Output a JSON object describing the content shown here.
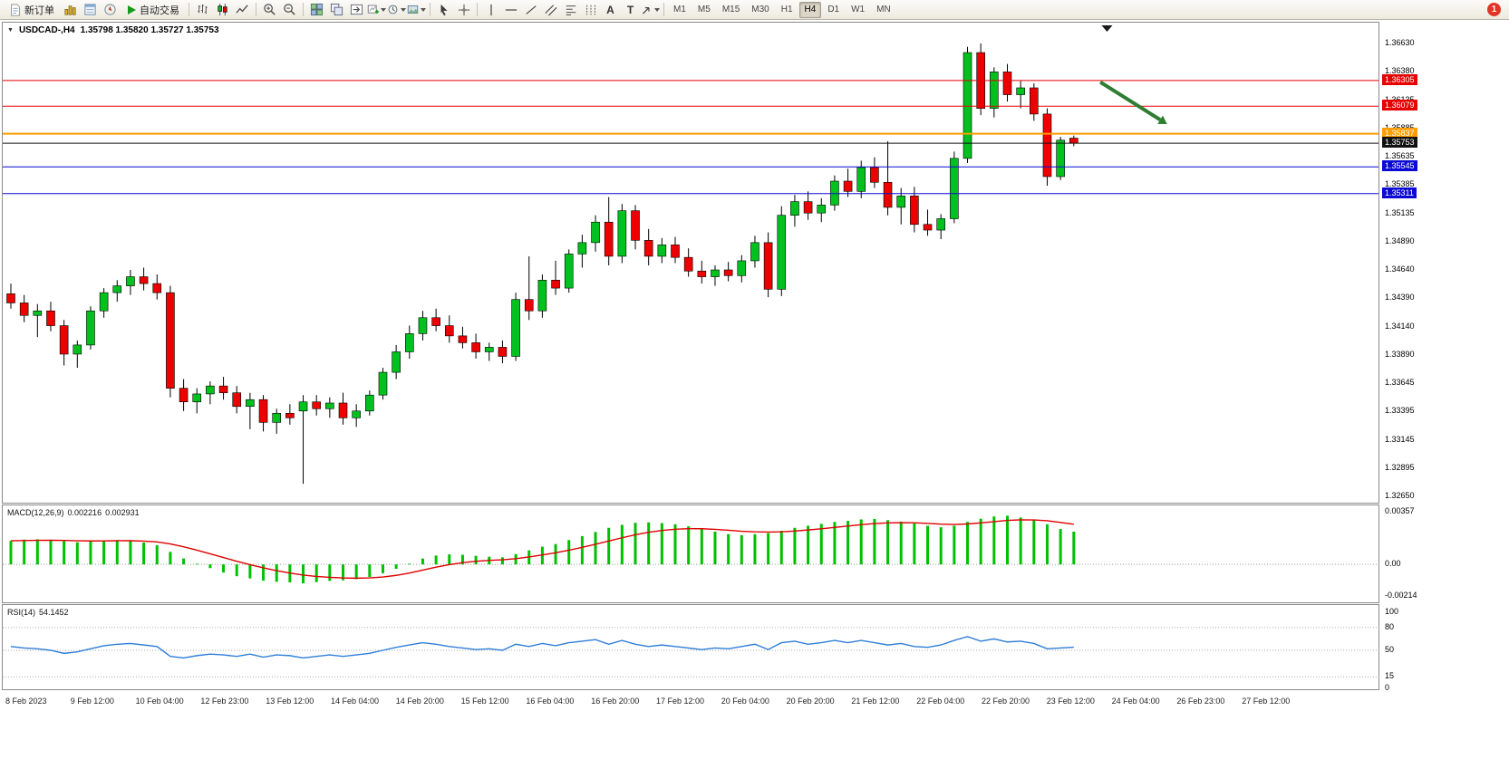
{
  "colors": {
    "candle_up": "#00C11E",
    "candle_down": "#ED0000",
    "wick": "#000000",
    "macd_histogram": "#00C000",
    "macd_signal": "#E00000",
    "rsi_line": "#2F7ED8",
    "arrow": "#2E7D32",
    "resistance_line": "#E60000",
    "support_line": "#0A0AD4",
    "pivot_line": "#FF9C00",
    "bid_line": "#111111"
  },
  "toolbar": {
    "new_order_label": "新订单",
    "auto_trading_label": "自动交易",
    "timeframes": [
      "M1",
      "M5",
      "M15",
      "M30",
      "H1",
      "H4",
      "D1",
      "W1",
      "MN"
    ],
    "active_timeframe": "H4",
    "notification_badge": "1"
  },
  "chart": {
    "title": "USDCAD-,H4",
    "ohlc": "1.35798 1.35820 1.35727 1.35753"
  },
  "price_axis": [
    "1.36630",
    "1.36380",
    "1.36135",
    "1.35885",
    "1.35635",
    "1.35385",
    "1.35135",
    "1.34890",
    "1.34640",
    "1.34390",
    "1.34140",
    "1.33890",
    "1.33645",
    "1.33395",
    "1.33145",
    "1.32895",
    "1.32650"
  ],
  "lines": [
    {
      "label": "1.36305",
      "price": 1.36305,
      "color": "#E60000",
      "width": 1,
      "name": "resistance-1"
    },
    {
      "label": "1.36079",
      "price": 1.36079,
      "color": "#E60000",
      "width": 1,
      "name": "resistance-2"
    },
    {
      "label": "1.35837",
      "price": 1.35837,
      "color": "#FF9C00",
      "width": 2,
      "name": "pivot"
    },
    {
      "label": "1.35753",
      "price": 1.35753,
      "color": "#111111",
      "width": 1,
      "name": "bid"
    },
    {
      "label": "1.35545",
      "price": 1.35545,
      "color": "#0A0AD4",
      "width": 1,
      "name": "support-1"
    },
    {
      "label": "1.35311",
      "price": 1.35311,
      "color": "#0A0AD4",
      "width": 1,
      "name": "support-2"
    }
  ],
  "macd": {
    "label": "MACD(12,26,9)",
    "value_main": "0.002216",
    "value_signal": "0.002931",
    "axis_labels": [
      {
        "text": "0.00357",
        "value": 0.00357
      },
      {
        "text": "0.00",
        "value": 0
      },
      {
        "text": "-0.00214",
        "value": -0.00214
      }
    ]
  },
  "rsi": {
    "label": "RSI(14)",
    "value": "54.1452",
    "axis_labels": [
      {
        "text": "100",
        "value": 100
      },
      {
        "text": "80",
        "value": 80
      },
      {
        "text": "50",
        "value": 50
      },
      {
        "text": "15",
        "value": 15
      },
      {
        "text": "0",
        "value": 0
      }
    ],
    "levels": [
      80,
      50,
      15
    ]
  },
  "time_axis": [
    "8 Feb 2023",
    "9 Feb 12:00",
    "10 Feb 04:00",
    "12 Feb 23:00",
    "13 Feb 12:00",
    "14 Feb 04:00",
    "14 Feb 20:00",
    "15 Feb 12:00",
    "16 Feb 04:00",
    "16 Feb 20:00",
    "17 Feb 12:00",
    "20 Feb 04:00",
    "20 Feb 20:00",
    "21 Feb 12:00",
    "22 Feb 04:00",
    "22 Feb 20:00",
    "23 Feb 12:00",
    "24 Feb 04:00",
    "26 Feb 23:00",
    "27 Feb 12:00"
  ],
  "chart_data": {
    "type": "candlestick",
    "symbol": "USDCAD-",
    "timeframe": "H4",
    "current_bar": {
      "open": 1.35798,
      "high": 1.3582,
      "low": 1.35727,
      "close": 1.35753
    },
    "price_range": [
      1.3265,
      1.3663
    ],
    "candles": [
      [
        1.3443,
        1.3452,
        1.343,
        1.3435
      ],
      [
        1.3435,
        1.3442,
        1.3418,
        1.3424
      ],
      [
        1.3424,
        1.3434,
        1.3405,
        1.3428
      ],
      [
        1.3428,
        1.3436,
        1.341,
        1.3415
      ],
      [
        1.3415,
        1.342,
        1.338,
        1.339
      ],
      [
        1.339,
        1.3402,
        1.3378,
        1.3398
      ],
      [
        1.3398,
        1.3432,
        1.3394,
        1.3428
      ],
      [
        1.3428,
        1.3448,
        1.3422,
        1.3444
      ],
      [
        1.3444,
        1.3455,
        1.3436,
        1.345
      ],
      [
        1.345,
        1.3464,
        1.3442,
        1.3458
      ],
      [
        1.3458,
        1.3466,
        1.3446,
        1.3452
      ],
      [
        1.3452,
        1.346,
        1.3438,
        1.3444
      ],
      [
        1.3444,
        1.345,
        1.3352,
        1.336
      ],
      [
        1.336,
        1.3368,
        1.334,
        1.3348
      ],
      [
        1.3348,
        1.336,
        1.3338,
        1.3355
      ],
      [
        1.3355,
        1.3366,
        1.3346,
        1.3362
      ],
      [
        1.3362,
        1.337,
        1.335,
        1.3356
      ],
      [
        1.3356,
        1.3362,
        1.3338,
        1.3344
      ],
      [
        1.3344,
        1.3356,
        1.3324,
        1.335
      ],
      [
        1.335,
        1.3354,
        1.3322,
        1.333
      ],
      [
        1.333,
        1.3342,
        1.332,
        1.3338
      ],
      [
        1.3338,
        1.3346,
        1.3328,
        1.3334
      ],
      [
        1.334,
        1.3354,
        1.3276,
        1.3348
      ],
      [
        1.3348,
        1.3354,
        1.3336,
        1.3342
      ],
      [
        1.3342,
        1.3352,
        1.3334,
        1.3347
      ],
      [
        1.3347,
        1.3356,
        1.3328,
        1.3334
      ],
      [
        1.3334,
        1.3346,
        1.3326,
        1.334
      ],
      [
        1.334,
        1.3358,
        1.3336,
        1.3354
      ],
      [
        1.3354,
        1.3378,
        1.335,
        1.3374
      ],
      [
        1.3374,
        1.3398,
        1.3368,
        1.3392
      ],
      [
        1.3392,
        1.3415,
        1.3386,
        1.3408
      ],
      [
        1.3408,
        1.3428,
        1.3402,
        1.3422
      ],
      [
        1.3422,
        1.343,
        1.341,
        1.3415
      ],
      [
        1.3415,
        1.3424,
        1.34,
        1.3406
      ],
      [
        1.3406,
        1.3414,
        1.3395,
        1.34
      ],
      [
        1.34,
        1.3408,
        1.3386,
        1.3392
      ],
      [
        1.3392,
        1.34,
        1.3384,
        1.3396
      ],
      [
        1.3396,
        1.3402,
        1.3382,
        1.3388
      ],
      [
        1.3388,
        1.3444,
        1.3384,
        1.3438
      ],
      [
        1.3438,
        1.3476,
        1.342,
        1.3428
      ],
      [
        1.3428,
        1.346,
        1.3422,
        1.3455
      ],
      [
        1.3455,
        1.3472,
        1.3442,
        1.3448
      ],
      [
        1.3448,
        1.3482,
        1.3444,
        1.3478
      ],
      [
        1.3478,
        1.3495,
        1.3466,
        1.3488
      ],
      [
        1.3488,
        1.3512,
        1.348,
        1.3506
      ],
      [
        1.3506,
        1.3528,
        1.3468,
        1.3476
      ],
      [
        1.3476,
        1.3522,
        1.347,
        1.3516
      ],
      [
        1.3516,
        1.3521,
        1.3482,
        1.349
      ],
      [
        1.349,
        1.35,
        1.3468,
        1.3476
      ],
      [
        1.3476,
        1.3492,
        1.347,
        1.3486
      ],
      [
        1.3486,
        1.3493,
        1.347,
        1.3475
      ],
      [
        1.3475,
        1.3483,
        1.3458,
        1.3463
      ],
      [
        1.3463,
        1.3472,
        1.3452,
        1.3458
      ],
      [
        1.3458,
        1.3468,
        1.345,
        1.3464
      ],
      [
        1.3464,
        1.3471,
        1.3454,
        1.3459
      ],
      [
        1.3459,
        1.3477,
        1.3453,
        1.3472
      ],
      [
        1.3472,
        1.3494,
        1.3466,
        1.3488
      ],
      [
        1.3488,
        1.3497,
        1.344,
        1.3447
      ],
      [
        1.3447,
        1.352,
        1.3441,
        1.3512
      ],
      [
        1.3512,
        1.353,
        1.3502,
        1.3524
      ],
      [
        1.3524,
        1.3533,
        1.3508,
        1.3514
      ],
      [
        1.3514,
        1.3527,
        1.3506,
        1.3521
      ],
      [
        1.3521,
        1.3547,
        1.3516,
        1.3542
      ],
      [
        1.3542,
        1.3553,
        1.3528,
        1.3533
      ],
      [
        1.3533,
        1.356,
        1.3527,
        1.3554
      ],
      [
        1.3554,
        1.3563,
        1.3536,
        1.3541
      ],
      [
        1.3541,
        1.3577,
        1.3512,
        1.3519
      ],
      [
        1.3519,
        1.3536,
        1.3504,
        1.3529
      ],
      [
        1.3529,
        1.3537,
        1.3497,
        1.3504
      ],
      [
        1.3504,
        1.3517,
        1.3494,
        1.3499
      ],
      [
        1.3499,
        1.3513,
        1.3491,
        1.3509
      ],
      [
        1.3509,
        1.3568,
        1.3505,
        1.3562
      ],
      [
        1.3562,
        1.366,
        1.3558,
        1.3655
      ],
      [
        1.3655,
        1.3663,
        1.36,
        1.3606
      ],
      [
        1.3606,
        1.3642,
        1.3598,
        1.3638
      ],
      [
        1.3638,
        1.3645,
        1.3612,
        1.3618
      ],
      [
        1.3618,
        1.363,
        1.3606,
        1.3624
      ],
      [
        1.3624,
        1.3628,
        1.3595,
        1.3601
      ],
      [
        1.3601,
        1.3606,
        1.3538,
        1.3546
      ],
      [
        1.3546,
        1.3581,
        1.3543,
        1.3578
      ],
      [
        1.35798,
        1.3582,
        1.35727,
        1.35753
      ]
    ],
    "indicators": {
      "macd": {
        "params": "12,26,9",
        "range": [
          -0.00214,
          0.00357
        ],
        "signal_period": 9,
        "histogram": [
          0.0016,
          0.00168,
          0.0017,
          0.00165,
          0.00158,
          0.0015,
          0.00155,
          0.00162,
          0.00165,
          0.0016,
          0.00148,
          0.0013,
          0.00085,
          0.0004,
          5e-05,
          -0.00025,
          -0.00055,
          -0.0008,
          -0.00095,
          -0.0011,
          -0.00118,
          -0.00122,
          -0.00128,
          -0.0012,
          -0.00112,
          -0.00108,
          -0.001,
          -0.00085,
          -0.0006,
          -0.0003,
          5e-05,
          0.0004,
          0.0006,
          0.00068,
          0.00065,
          0.00058,
          0.00052,
          0.00048,
          0.0007,
          0.00095,
          0.0012,
          0.00138,
          0.00165,
          0.00192,
          0.0022,
          0.00248,
          0.00268,
          0.00282,
          0.00285,
          0.0028,
          0.00272,
          0.00258,
          0.0024,
          0.00222,
          0.00205,
          0.00198,
          0.00205,
          0.00212,
          0.00228,
          0.00248,
          0.00262,
          0.00275,
          0.00288,
          0.00295,
          0.00305,
          0.00308,
          0.003,
          0.0029,
          0.00278,
          0.00262,
          0.00252,
          0.00262,
          0.00288,
          0.0031,
          0.00325,
          0.0033,
          0.00318,
          0.003,
          0.00272,
          0.0024,
          0.00222
        ]
      },
      "rsi": {
        "period": 14,
        "range": [
          0,
          100
        ],
        "values": [
          55,
          53,
          52,
          50,
          46,
          48,
          52,
          56,
          58,
          59,
          57,
          55,
          42,
          40,
          43,
          45,
          44,
          42,
          45,
          41,
          44,
          43,
          40,
          42,
          44,
          42,
          44,
          46,
          50,
          54,
          57,
          60,
          58,
          55,
          53,
          51,
          52,
          50,
          58,
          55,
          59,
          56,
          60,
          62,
          64,
          58,
          63,
          58,
          55,
          57,
          55,
          53,
          51,
          53,
          52,
          55,
          58,
          51,
          60,
          62,
          58,
          60,
          63,
          60,
          63,
          60,
          57,
          59,
          55,
          54,
          57,
          63,
          68,
          62,
          65,
          61,
          62,
          59,
          52,
          53,
          54.15
        ]
      }
    },
    "arrow_annotation": {
      "from": {
        "bar": 82,
        "price": 1.3629
      },
      "to": {
        "bar": 86.5,
        "price": 1.3596
      }
    },
    "shift_marker_bar": 82.5
  }
}
